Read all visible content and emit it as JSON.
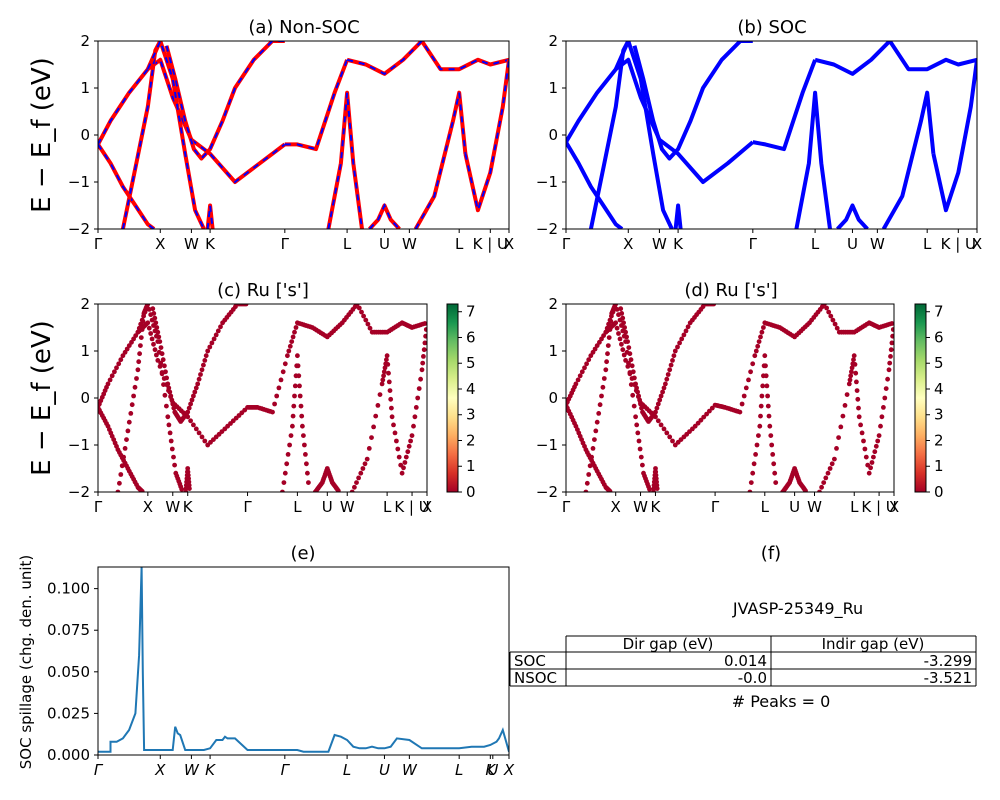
{
  "figure": {
    "ylabel_top": "E − E_f (eV)",
    "ylabel_mid": "E − E_f (eV)",
    "ylabel_bottom": "SOC spillage (chg. den. unit)"
  },
  "k_ticks": {
    "labels": [
      "Γ",
      "X",
      "W",
      "K",
      "Γ",
      "L",
      "U",
      "W",
      "L",
      "K | U",
      "X"
    ],
    "positions": [
      0,
      0.5,
      0.75,
      0.9,
      1.5,
      2.0,
      2.3,
      2.5,
      2.9,
      3.15,
      3.3
    ]
  },
  "chart_data": [
    {
      "panel": "a",
      "type": "line",
      "title": "(a) Non-SOC",
      "ylim": [
        -2,
        2
      ],
      "xlim": [
        0,
        3.3
      ],
      "yticks": [
        -2,
        -1,
        0,
        1,
        2
      ],
      "series": [
        {
          "role": "band",
          "color": "#ff0000",
          "dashed_overlay": "#0000ff",
          "bands": [
            {
              "x": [
                0,
                0.1,
                0.25,
                0.4,
                0.5,
                0.6,
                0.75,
                0.9,
                1.1,
                1.3,
                1.5
              ],
              "y": [
                -0.2,
                0.3,
                0.9,
                1.4,
                1.6,
                0.8,
                -0.1,
                -0.4,
                -1.0,
                -0.6,
                -0.2
              ]
            },
            {
              "x": [
                0,
                0.1,
                0.2,
                0.3,
                0.4,
                0.45
              ],
              "y": [
                -0.2,
                -0.6,
                -1.1,
                -1.5,
                -1.9,
                -2.0
              ]
            },
            {
              "x": [
                0.2,
                0.3,
                0.4,
                0.46,
                0.5
              ],
              "y": [
                -2.0,
                -0.7,
                0.6,
                1.8,
                2.0
              ]
            },
            {
              "x": [
                0.55,
                0.62,
                0.7,
                0.77,
                0.83,
                0.9,
                1.0,
                1.1,
                1.25,
                1.4,
                1.5
              ],
              "y": [
                1.9,
                1.2,
                0.3,
                -0.3,
                -0.5,
                -0.3,
                0.3,
                1.0,
                1.6,
                2.0,
                2.0
              ]
            },
            {
              "x": [
                0.4,
                0.5,
                0.6,
                0.7,
                0.78,
                0.85
              ],
              "y": [
                1.4,
                2.0,
                1.2,
                -0.4,
                -1.6,
                -2.0
              ]
            },
            {
              "x": [
                0.88,
                0.9,
                0.92
              ],
              "y": [
                -2.0,
                -1.5,
                -2.0
              ]
            },
            {
              "x": [
                1.5,
                1.6,
                1.75,
                1.9,
                2.0
              ],
              "y": [
                -0.2,
                -0.2,
                -0.3,
                0.9,
                1.6
              ]
            },
            {
              "x": [
                2.0,
                2.15,
                2.3,
                2.45,
                2.6,
                2.75,
                2.9,
                3.05,
                3.15,
                3.3
              ],
              "y": [
                1.6,
                1.5,
                1.3,
                1.6,
                2.0,
                1.4,
                1.4,
                1.6,
                1.5,
                1.6
              ]
            },
            {
              "x": [
                1.85,
                1.95,
                2.0,
                2.05,
                2.12
              ],
              "y": [
                -2.0,
                -0.6,
                0.9,
                -0.6,
                -2.0
              ]
            },
            {
              "x": [
                2.18,
                2.25,
                2.3,
                2.35,
                2.42
              ],
              "y": [
                -2.0,
                -1.8,
                -1.5,
                -1.8,
                -2.0
              ]
            },
            {
              "x": [
                2.55,
                2.7,
                2.85,
                2.9,
                2.95
              ],
              "y": [
                -2.0,
                -1.3,
                0.3,
                0.9,
                -0.4
              ]
            },
            {
              "x": [
                2.95,
                3.05,
                3.15,
                3.25,
                3.3
              ],
              "y": [
                -0.4,
                -1.6,
                -0.8,
                0.6,
                1.6
              ]
            }
          ]
        }
      ]
    },
    {
      "panel": "b",
      "type": "line",
      "title": "(b) SOC",
      "ylim": [
        -2,
        2
      ],
      "xlim": [
        0,
        3.3
      ],
      "yticks": [
        -2,
        -1,
        0,
        1,
        2
      ],
      "series": [
        {
          "role": "band",
          "color": "#0000ff",
          "bands": [
            {
              "x": [
                0,
                0.1,
                0.25,
                0.4,
                0.5,
                0.6,
                0.75,
                0.9,
                1.1,
                1.3,
                1.5
              ],
              "y": [
                -0.15,
                0.3,
                0.9,
                1.4,
                1.6,
                0.8,
                -0.1,
                -0.4,
                -1.0,
                -0.6,
                -0.15
              ]
            },
            {
              "x": [
                0,
                0.1,
                0.2,
                0.3,
                0.4,
                0.45
              ],
              "y": [
                -0.15,
                -0.6,
                -1.1,
                -1.5,
                -1.9,
                -2.0
              ]
            },
            {
              "x": [
                0.2,
                0.3,
                0.4,
                0.46,
                0.5
              ],
              "y": [
                -2.0,
                -0.7,
                0.6,
                1.8,
                2.0
              ]
            },
            {
              "x": [
                0.55,
                0.62,
                0.7,
                0.77,
                0.83,
                0.9,
                1.0,
                1.1,
                1.25,
                1.4,
                1.5
              ],
              "y": [
                1.9,
                1.2,
                0.3,
                -0.3,
                -0.5,
                -0.3,
                0.3,
                1.0,
                1.6,
                2.0,
                2.0
              ]
            },
            {
              "x": [
                0.4,
                0.5,
                0.6,
                0.7,
                0.78,
                0.85
              ],
              "y": [
                1.4,
                2.0,
                1.2,
                -0.4,
                -1.6,
                -2.0
              ]
            },
            {
              "x": [
                0.88,
                0.9,
                0.92
              ],
              "y": [
                -2.0,
                -1.5,
                -2.0
              ]
            },
            {
              "x": [
                1.5,
                1.6,
                1.75,
                1.9,
                2.0
              ],
              "y": [
                -0.15,
                -0.2,
                -0.3,
                0.9,
                1.6
              ]
            },
            {
              "x": [
                2.0,
                2.15,
                2.3,
                2.45,
                2.6,
                2.75,
                2.9,
                3.05,
                3.15,
                3.3
              ],
              "y": [
                1.6,
                1.5,
                1.3,
                1.6,
                2.0,
                1.4,
                1.4,
                1.6,
                1.5,
                1.6
              ]
            },
            {
              "x": [
                1.85,
                1.95,
                2.0,
                2.05,
                2.12
              ],
              "y": [
                -2.0,
                -0.6,
                0.9,
                -0.6,
                -2.0
              ]
            },
            {
              "x": [
                2.18,
                2.25,
                2.3,
                2.35,
                2.42
              ],
              "y": [
                -2.0,
                -1.8,
                -1.5,
                -1.8,
                -2.0
              ]
            },
            {
              "x": [
                2.55,
                2.7,
                2.85,
                2.9,
                2.95
              ],
              "y": [
                -2.0,
                -1.3,
                0.3,
                0.9,
                -0.4
              ]
            },
            {
              "x": [
                2.95,
                3.05,
                3.15,
                3.25,
                3.3
              ],
              "y": [
                -0.4,
                -1.6,
                -0.8,
                0.6,
                1.6
              ]
            }
          ]
        }
      ]
    },
    {
      "panel": "c",
      "type": "scatter",
      "title": "(c)  Ru ['s']",
      "ylim": [
        -2,
        2
      ],
      "xlim": [
        0,
        3.3
      ],
      "yticks": [
        -2,
        -1,
        0,
        1,
        2
      ],
      "colorbar": {
        "min": 0,
        "max": 7.3,
        "ticks": [
          0,
          1,
          2,
          3,
          4,
          5,
          6,
          7
        ],
        "cmap": "RdYlGn"
      },
      "point_value": 0,
      "point_color": "#a50026"
    },
    {
      "panel": "d",
      "type": "scatter",
      "title": "(d) Ru ['s']",
      "ylim": [
        -2,
        2
      ],
      "xlim": [
        0,
        3.3
      ],
      "yticks": [
        -2,
        -1,
        0,
        1,
        2
      ],
      "colorbar": {
        "min": 0,
        "max": 7.3,
        "ticks": [
          0,
          1,
          2,
          3,
          4,
          5,
          6,
          7
        ],
        "cmap": "RdYlGn"
      },
      "point_value": 0,
      "point_color": "#a50026"
    },
    {
      "panel": "e",
      "type": "line",
      "title": "(e)",
      "xlim": [
        0,
        3.3
      ],
      "ylim": [
        0,
        0.113
      ],
      "yticks": [
        0.0,
        0.025,
        0.05,
        0.075,
        0.1
      ],
      "ytick_labels": [
        "0.000",
        "0.025",
        "0.050",
        "0.075",
        "0.100"
      ],
      "series": [
        {
          "name": "",
          "color": "#1f77b4",
          "x": [
            0,
            0.1,
            0.1,
            0.15,
            0.2,
            0.25,
            0.3,
            0.33,
            0.35,
            0.36,
            0.37,
            0.5,
            0.55,
            0.6,
            0.62,
            0.64,
            0.66,
            0.7,
            0.75,
            0.8,
            0.85,
            0.9,
            0.95,
            1.0,
            1.02,
            1.04,
            1.1,
            1.2,
            1.3,
            1.35,
            1.4,
            1.6,
            1.65,
            1.7,
            1.75,
            1.8,
            1.85,
            1.9,
            1.95,
            2.0,
            2.05,
            2.1,
            2.15,
            2.2,
            2.25,
            2.3,
            2.35,
            2.4,
            2.5,
            2.6,
            2.7,
            2.8,
            2.9,
            3.0,
            3.05,
            3.1,
            3.15,
            3.2,
            3.22,
            3.25,
            3.3
          ],
          "y": [
            0.002,
            0.002,
            0.008,
            0.008,
            0.01,
            0.015,
            0.025,
            0.06,
            0.113,
            0.05,
            0.003,
            0.003,
            0.003,
            0.003,
            0.017,
            0.013,
            0.012,
            0.003,
            0.003,
            0.003,
            0.003,
            0.004,
            0.009,
            0.009,
            0.011,
            0.01,
            0.01,
            0.003,
            0.003,
            0.003,
            0.003,
            0.003,
            0.002,
            0.002,
            0.002,
            0.002,
            0.002,
            0.012,
            0.011,
            0.009,
            0.005,
            0.004,
            0.004,
            0.005,
            0.004,
            0.004,
            0.005,
            0.01,
            0.009,
            0.004,
            0.004,
            0.004,
            0.004,
            0.005,
            0.005,
            0.005,
            0.006,
            0.008,
            0.01,
            0.015,
            0.002
          ]
        }
      ],
      "xtick_labels_italic": [
        "Γ",
        "X",
        "W",
        "K",
        "Γ",
        "L",
        "U",
        "W",
        "L",
        "K",
        "U",
        "X"
      ]
    }
  ],
  "table_panel": {
    "title": "(f)",
    "id": "JVASP-25349_Ru",
    "columns": [
      "Dir gap (eV)",
      "Indir gap (eV)"
    ],
    "rows": [
      {
        "label": "SOC",
        "values": [
          "0.014",
          "-3.299"
        ]
      },
      {
        "label": "NSOC",
        "values": [
          "-0.0",
          "-3.521"
        ]
      }
    ],
    "peaks_text": "# Peaks = 0"
  }
}
